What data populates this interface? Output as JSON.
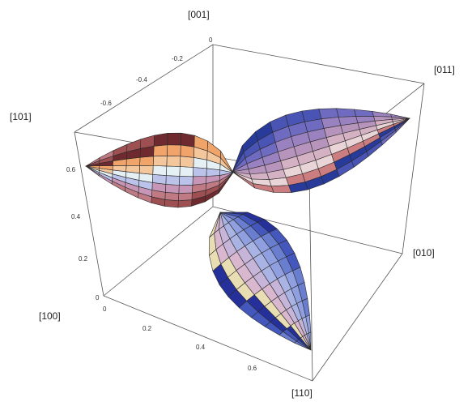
{
  "direction_labels": {
    "d001": "[001]",
    "d011": "[011]",
    "d101": "[101]",
    "d100": "[100]",
    "d010": "[010]",
    "d110": "[110]"
  },
  "top_axis_ticks": [
    "0",
    "-0.2",
    "-0.4",
    "-0.6"
  ],
  "left_axis_ticks": [
    "0.6",
    "0.4",
    "0.2",
    "0"
  ],
  "bottom_axis_ticks": [
    "0",
    "0.2",
    "0.4",
    "0.6"
  ],
  "lobes": [
    {
      "id": "lobe-101",
      "direction": "[101]",
      "colors": [
        "#6e2a2e",
        "#9d4f52",
        "#c07a84",
        "#c796b6",
        "#bcc3ea",
        "#e5f0f5",
        "#f3c79b",
        "#f0a46a"
      ]
    },
    {
      "id": "lobe-011",
      "direction": "[011]",
      "colors": [
        "#283a9a",
        "#4a54b4",
        "#6f6bc0",
        "#9a82c0",
        "#b794bb",
        "#d4b1c3",
        "#e9d5d7",
        "#cb7d80"
      ]
    },
    {
      "id": "lobe-110",
      "direction": "[110]",
      "colors": [
        "#26309a",
        "#4457bc",
        "#6a7ed0",
        "#8f9fe0",
        "#aab4e4",
        "#c6b4d9",
        "#d9b8cf",
        "#e9ddb4"
      ]
    }
  ]
}
